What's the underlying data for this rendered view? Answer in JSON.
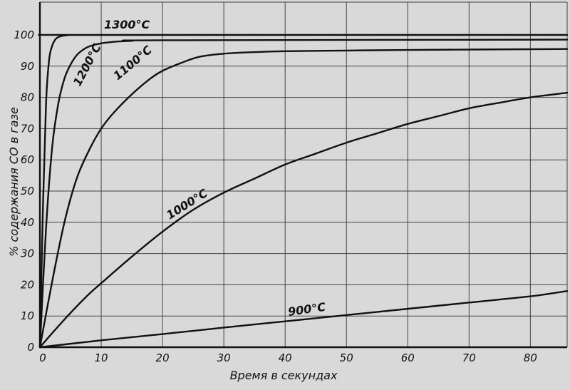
{
  "chart_data": {
    "type": "line",
    "title": "",
    "xlabel": "Время в секундах",
    "ylabel": "% содержания CO в газе",
    "xlim": [
      0,
      86
    ],
    "ylim": [
      0,
      100
    ],
    "grid": true,
    "x_ticks": [
      0,
      10,
      20,
      30,
      40,
      50,
      60,
      70,
      80
    ],
    "y_ticks": [
      0,
      10,
      20,
      30,
      40,
      50,
      60,
      70,
      80,
      90,
      100
    ],
    "series": [
      {
        "name": "1300°C",
        "x": [
          0,
          0.5,
          1,
          1.5,
          2,
          2.5,
          3,
          4,
          5,
          6,
          86
        ],
        "y": [
          0,
          45,
          78,
          92,
          96.5,
          98.5,
          99.3,
          99.8,
          100,
          100,
          100
        ]
      },
      {
        "name": "1200°C",
        "x": [
          0,
          1,
          2,
          3,
          4,
          5,
          6,
          7,
          8,
          10,
          12,
          15,
          20,
          86
        ],
        "y": [
          0,
          38,
          64,
          78,
          86,
          90.5,
          93.5,
          95.2,
          96.3,
          97.3,
          97.8,
          98.1,
          98.3,
          98.5
        ]
      },
      {
        "name": "1100°C",
        "x": [
          0,
          2,
          4,
          6,
          8,
          10,
          12,
          15,
          18,
          20,
          23,
          26,
          30,
          35,
          40,
          50,
          60,
          86
        ],
        "y": [
          0,
          21,
          40,
          54,
          63,
          70,
          75,
          81,
          86,
          88.5,
          91,
          93,
          94,
          94.5,
          94.8,
          95,
          95.2,
          95.5
        ]
      },
      {
        "name": "1000°C",
        "x": [
          0,
          2,
          5,
          8,
          10,
          15,
          20,
          25,
          30,
          35,
          40,
          45,
          50,
          55,
          60,
          65,
          70,
          75,
          80,
          86
        ],
        "y": [
          0,
          4.5,
          11,
          17,
          20.5,
          29,
          37,
          44,
          49.5,
          54,
          58.5,
          62,
          65.5,
          68.5,
          71.5,
          74,
          76.5,
          78.3,
          80,
          81.5
        ]
      },
      {
        "name": "900°C",
        "x": [
          0,
          10,
          20,
          30,
          40,
          50,
          60,
          70,
          80,
          86
        ],
        "y": [
          0,
          2.2,
          4.2,
          6.3,
          8.3,
          10.3,
          12.3,
          14.3,
          16.3,
          18
        ]
      }
    ]
  }
}
